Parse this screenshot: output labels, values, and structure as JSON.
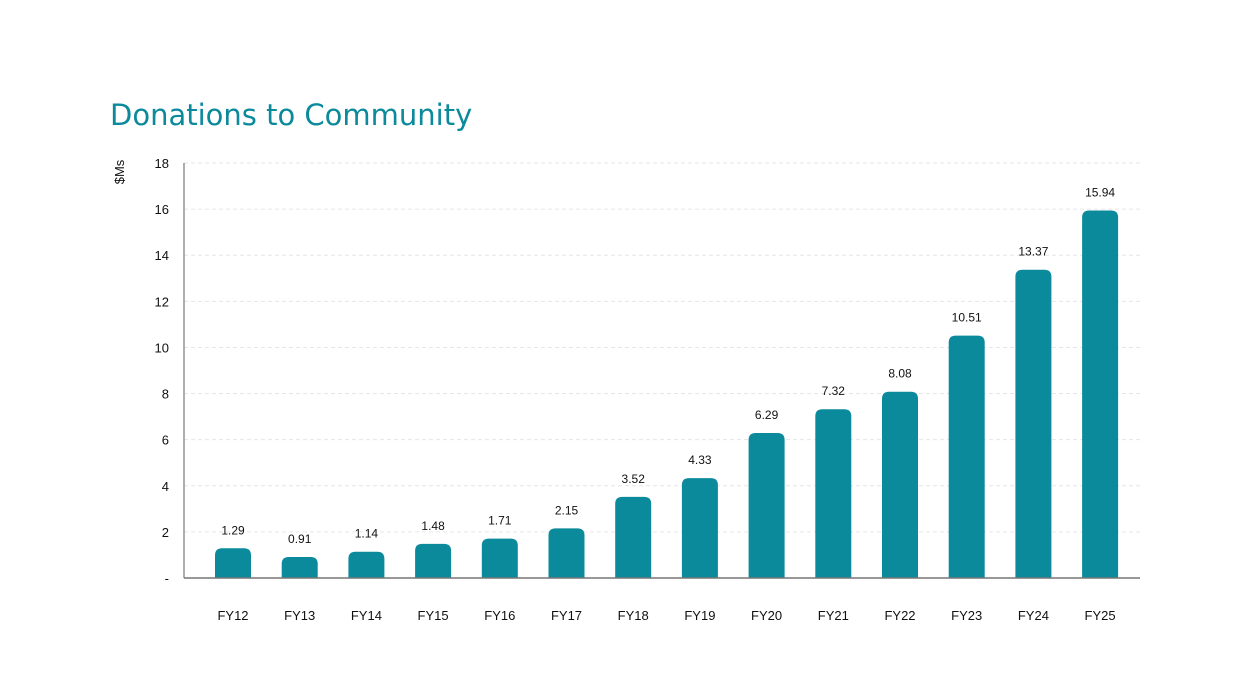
{
  "chart_data": {
    "type": "bar",
    "title": "Donations to Community",
    "ylabel": "$Ms",
    "xlabel": "",
    "categories": [
      "FY12",
      "FY13",
      "FY14",
      "FY15",
      "FY16",
      "FY17",
      "FY18",
      "FY19",
      "FY20",
      "FY21",
      "FY22",
      "FY23",
      "FY24",
      "FY25"
    ],
    "values": [
      1.29,
      0.91,
      1.14,
      1.48,
      1.71,
      2.15,
      3.52,
      4.33,
      6.29,
      7.32,
      8.08,
      10.51,
      13.37,
      15.94
    ],
    "data_labels": [
      "1.29",
      "0.91",
      "1.14",
      "1.48",
      "1.71",
      "2.15",
      "3.52",
      "4.33",
      "6.29",
      "7.32",
      "8.08",
      "10.51",
      "13.37",
      "15.94"
    ],
    "ylim": [
      0,
      18
    ],
    "yticks": [
      0,
      2,
      4,
      6,
      8,
      10,
      12,
      14,
      16,
      18
    ],
    "ytick_labels": [
      "-",
      "2",
      "4",
      "6",
      "8",
      "10",
      "12",
      "14",
      "16",
      "18"
    ],
    "grid": true,
    "bar_color": "#0b8a9c",
    "title_color": "#0b8a9c"
  }
}
